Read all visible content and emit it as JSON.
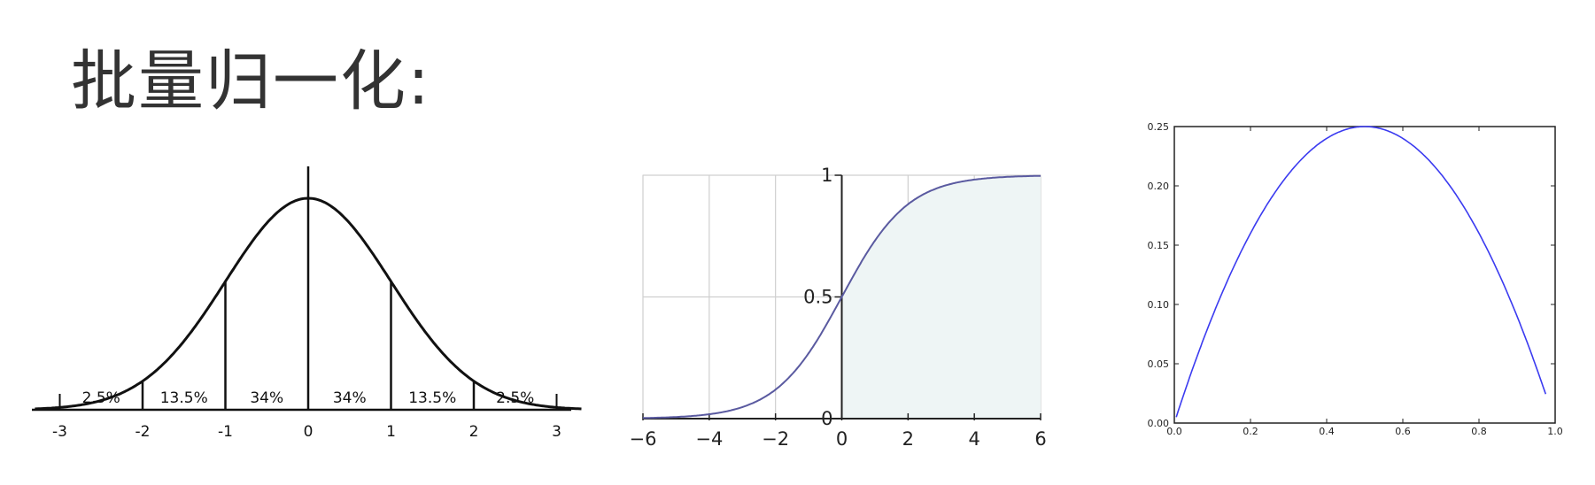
{
  "slide": {
    "title": "批量归一化:"
  },
  "chart_data": [
    {
      "type": "line",
      "curve": "normal distribution",
      "x_ticks": [
        "-3",
        "-2",
        "-1",
        "0",
        "1",
        "2",
        "3"
      ],
      "x_tick_values": [
        -3,
        -2,
        -1,
        0,
        1,
        2,
        3
      ],
      "region_labels": [
        {
          "x": -2.5,
          "label": "2.5%"
        },
        {
          "x": -1.5,
          "label": "13.5%"
        },
        {
          "x": -0.5,
          "label": "34%"
        },
        {
          "x": 0.5,
          "label": "34%"
        },
        {
          "x": 1.5,
          "label": "13.5%"
        },
        {
          "x": 2.5,
          "label": "2.5%"
        }
      ],
      "dividers": [
        -2,
        -1,
        0,
        1,
        2
      ],
      "xlim": [
        -3.3,
        3.3
      ],
      "color": "#111111"
    },
    {
      "type": "line",
      "curve": "sigmoid",
      "x_ticks": [
        "−6",
        "−4",
        "−2",
        "0",
        "2",
        "4",
        "6"
      ],
      "x_tick_values": [
        -6,
        -4,
        -2,
        0,
        2,
        4,
        6
      ],
      "y_ticks": [
        "0",
        "0.5",
        "1"
      ],
      "y_tick_values": [
        0,
        0.5,
        1
      ],
      "xlim": [
        -6,
        6
      ],
      "ylim": [
        0,
        1
      ],
      "grid": true,
      "color": "#5a5aa0"
    },
    {
      "type": "line",
      "curve": "sigmoid derivative x(1-x)",
      "x_ticks": [
        "0.0",
        "0.2",
        "0.4",
        "0.6",
        "0.8",
        "1.0"
      ],
      "x_tick_values": [
        0,
        0.2,
        0.4,
        0.6,
        0.8,
        1.0
      ],
      "y_ticks": [
        "0.00",
        "0.05",
        "0.10",
        "0.15",
        "0.20",
        "0.25"
      ],
      "y_tick_values": [
        0,
        0.05,
        0.1,
        0.15,
        0.2,
        0.25
      ],
      "xlim": [
        0,
        1
      ],
      "ylim": [
        0,
        0.25
      ],
      "grid": false,
      "color": "#3b3bf0"
    }
  ]
}
